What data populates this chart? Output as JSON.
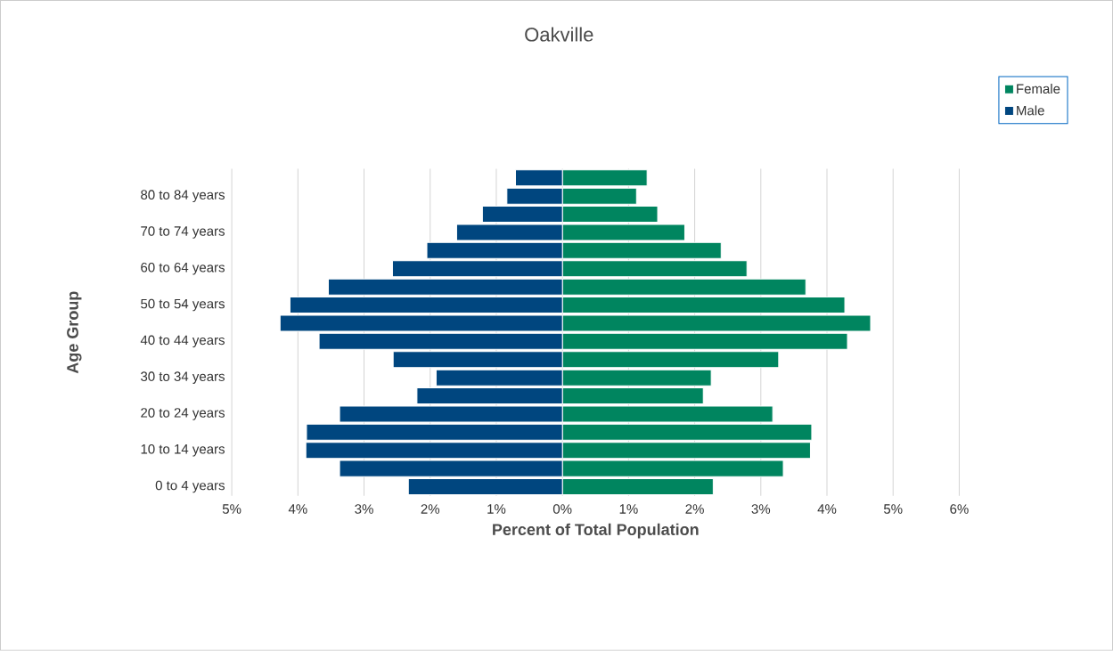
{
  "chart_data": {
    "type": "bar",
    "orientation": "horizontal",
    "title": "Oakville",
    "xlabel": "Percent of Total Population",
    "ylabel": "Age Group",
    "categories": [
      null,
      "80 to 84 years",
      null,
      "70 to 74 years",
      null,
      "60 to 64 years",
      null,
      "50 to 54 years",
      null,
      "40 to 44 years",
      null,
      "30 to 34 years",
      null,
      "20 to 24 years",
      null,
      "10 to 14 years",
      null,
      "0 to 4 years"
    ],
    "series": [
      {
        "name": "Female",
        "color": "#00855f",
        "values": [
          1.28,
          1.12,
          1.44,
          1.85,
          2.4,
          2.79,
          3.68,
          4.27,
          4.66,
          4.31,
          3.27,
          2.25,
          2.13,
          3.18,
          3.77,
          3.75,
          3.34,
          2.28
        ]
      },
      {
        "name": "Male",
        "color": "#00467f",
        "values": [
          -0.71,
          -0.84,
          -1.21,
          -1.6,
          -2.05,
          -2.57,
          -3.54,
          -4.12,
          -4.27,
          -3.68,
          -2.56,
          -1.91,
          -2.2,
          -3.37,
          -3.87,
          -3.88,
          -3.37,
          -2.33
        ]
      }
    ],
    "xlim": [
      -5,
      6
    ],
    "xticks": [
      {
        "value": -5,
        "label": "5%"
      },
      {
        "value": -4,
        "label": "4%"
      },
      {
        "value": -3,
        "label": "3%"
      },
      {
        "value": -2,
        "label": "2%"
      },
      {
        "value": -1,
        "label": "1%"
      },
      {
        "value": 0,
        "label": "0%"
      },
      {
        "value": 1,
        "label": "1%"
      },
      {
        "value": 2,
        "label": "2%"
      },
      {
        "value": 3,
        "label": "3%"
      },
      {
        "value": 4,
        "label": "4%"
      },
      {
        "value": 5,
        "label": "5%"
      },
      {
        "value": 6,
        "label": "6%"
      }
    ],
    "grid": "x",
    "legend": "top right",
    "stacked": true
  }
}
